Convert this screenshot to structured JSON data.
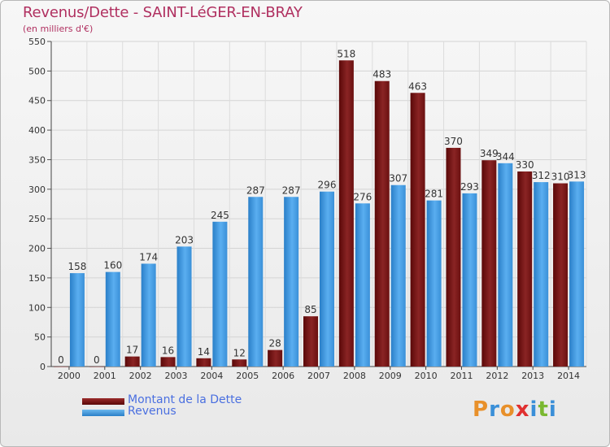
{
  "title": "Revenus/Dette - SAINT-LéGER-EN-BRAY",
  "subtitle": "(en milliers d'€)",
  "legend": {
    "debt_label": "Montant de la Dette",
    "revenue_label": "Revenus"
  },
  "logo": {
    "text": "Proxiti"
  },
  "colors": {
    "debt": "#7a1212",
    "revenue": "#3b9be0",
    "title": "#b03060",
    "legend_text": "#4a6fe0"
  },
  "chart_data": {
    "type": "bar",
    "categories": [
      "2000",
      "2001",
      "2002",
      "2003",
      "2004",
      "2005",
      "2006",
      "2007",
      "2008",
      "2009",
      "2010",
      "2011",
      "2012",
      "2013",
      "2014"
    ],
    "series": [
      {
        "name": "Montant de la Dette",
        "values": [
          0,
          0,
          17,
          16,
          14,
          12,
          28,
          85,
          518,
          483,
          463,
          370,
          349,
          330,
          310
        ]
      },
      {
        "name": "Revenus",
        "values": [
          158,
          160,
          174,
          203,
          245,
          287,
          287,
          296,
          276,
          307,
          281,
          293,
          344,
          312,
          313
        ]
      }
    ],
    "ylim": [
      0,
      550
    ],
    "yticks": [
      0,
      50,
      100,
      150,
      200,
      250,
      300,
      350,
      400,
      450,
      500,
      550
    ],
    "grid": true,
    "legend_position": "bottom-left"
  }
}
